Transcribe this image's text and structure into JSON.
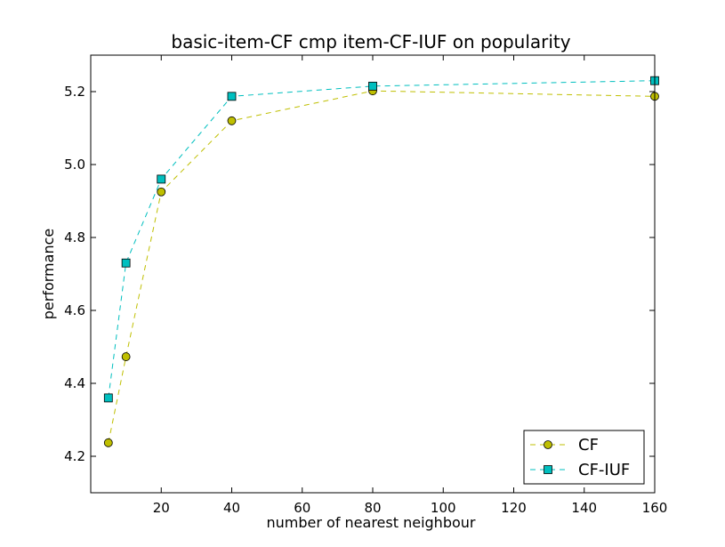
{
  "chart_data": {
    "type": "line",
    "title": "basic-item-CF cmp item-CF-IUF on popularity",
    "xlabel": "number of nearest neighbour",
    "ylabel": "performance",
    "xlim": [
      0,
      160
    ],
    "ylim": [
      4.1,
      5.3
    ],
    "xticks": [
      20,
      40,
      60,
      80,
      100,
      120,
      140,
      160
    ],
    "yticks": [
      4.2,
      4.4,
      4.6,
      4.8,
      5.0,
      5.2
    ],
    "xtick_labels": [
      "20",
      "40",
      "60",
      "80",
      "100",
      "120",
      "140",
      "160"
    ],
    "ytick_labels": [
      "4.2",
      "4.4",
      "4.6",
      "4.8",
      "5.0",
      "5.2"
    ],
    "grid": false,
    "legend_position": "lower-right",
    "series": [
      {
        "name": "CF",
        "color": "#bfbf00",
        "marker": "circle",
        "line_style": "dashed",
        "x": [
          5,
          10,
          20,
          40,
          80,
          160
        ],
        "y": [
          4.237,
          4.473,
          4.925,
          5.12,
          5.202,
          5.187
        ]
      },
      {
        "name": "CF-IUF",
        "color": "#00bfbf",
        "marker": "square",
        "line_style": "dashed",
        "x": [
          5,
          10,
          20,
          40,
          80,
          160
        ],
        "y": [
          4.36,
          4.73,
          4.96,
          5.187,
          5.215,
          5.23
        ]
      }
    ]
  }
}
